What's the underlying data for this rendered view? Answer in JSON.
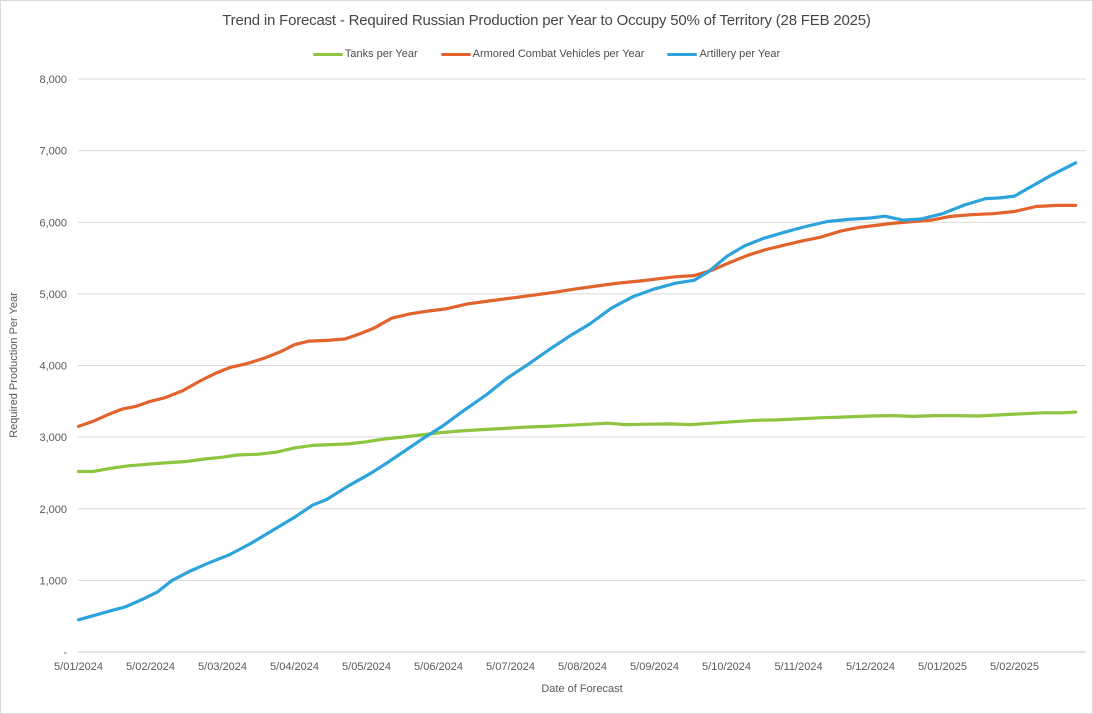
{
  "chart": {
    "title": "Trend in Forecast - Required Russian Production per Year to Occupy 50% of Territory (28 FEB 2025)",
    "x_axis_title": "Date of Forecast",
    "y_axis_title": "Required Production Per Year"
  },
  "colors": {
    "tanks": "#8CC540",
    "armored_combat_vehicles": "#E2632B",
    "artillery": "#2CA3DC",
    "gridline": "#D9D9D9",
    "axis_line": "#C6C6C6",
    "tick_text": "#595959",
    "title_text": "#474747"
  },
  "chart_data": {
    "type": "line",
    "title": "Trend in Forecast - Required Russian Production per Year to Occupy 50% of Territory (28 FEB 2025)",
    "xlabel": "Date of Forecast",
    "ylabel": "Required Production Per Year",
    "ylim": [
      0,
      8000
    ],
    "y_tick_step": 1000,
    "y_tick_labels": [
      "-",
      "1,000",
      "2,000",
      "3,000",
      "4,000",
      "5,000",
      "6,000",
      "7,000",
      "8,000"
    ],
    "x_tick_labels": [
      "5/01/2024",
      "5/02/2024",
      "5/03/2024",
      "5/04/2024",
      "5/05/2024",
      "5/06/2024",
      "5/07/2024",
      "5/08/2024",
      "5/09/2024",
      "5/10/2024",
      "5/11/2024",
      "5/12/2024",
      "5/01/2025",
      "5/02/2025"
    ],
    "x_units_note": "points given as [months after 5/01/2024 tick, required production per year]; series extend past last tick to ~28 FEB 2025",
    "x_range": [
      0,
      14.0
    ],
    "grid": "horizontal",
    "legend_position": "top",
    "series": [
      {
        "name": "Tanks per Year",
        "color": "#8CC540",
        "points": [
          [
            0,
            2520
          ],
          [
            0.2,
            2520
          ],
          [
            0.45,
            2565
          ],
          [
            0.7,
            2600
          ],
          [
            0.95,
            2620
          ],
          [
            1.2,
            2640
          ],
          [
            1.5,
            2660
          ],
          [
            1.75,
            2695
          ],
          [
            2.0,
            2720
          ],
          [
            2.2,
            2750
          ],
          [
            2.5,
            2762
          ],
          [
            2.75,
            2790
          ],
          [
            3.0,
            2850
          ],
          [
            3.25,
            2885
          ],
          [
            3.5,
            2895
          ],
          [
            3.75,
            2905
          ],
          [
            4.0,
            2935
          ],
          [
            4.25,
            2975
          ],
          [
            4.5,
            3000
          ],
          [
            4.75,
            3030
          ],
          [
            5.0,
            3060
          ],
          [
            5.3,
            3085
          ],
          [
            5.6,
            3105
          ],
          [
            5.9,
            3120
          ],
          [
            6.2,
            3140
          ],
          [
            6.5,
            3150
          ],
          [
            6.8,
            3165
          ],
          [
            7.1,
            3180
          ],
          [
            7.35,
            3195
          ],
          [
            7.6,
            3175
          ],
          [
            7.9,
            3180
          ],
          [
            8.2,
            3185
          ],
          [
            8.5,
            3175
          ],
          [
            8.8,
            3195
          ],
          [
            9.1,
            3215
          ],
          [
            9.4,
            3235
          ],
          [
            9.7,
            3240
          ],
          [
            10.0,
            3255
          ],
          [
            10.3,
            3270
          ],
          [
            10.6,
            3280
          ],
          [
            11.0,
            3295
          ],
          [
            11.3,
            3300
          ],
          [
            11.6,
            3290
          ],
          [
            11.9,
            3300
          ],
          [
            12.2,
            3300
          ],
          [
            12.5,
            3295
          ],
          [
            12.8,
            3310
          ],
          [
            13.1,
            3325
          ],
          [
            13.4,
            3340
          ],
          [
            13.65,
            3340
          ],
          [
            13.85,
            3350
          ]
        ]
      },
      {
        "name": "Armored Combat Vehicles per Year",
        "color": "#E2632B",
        "points": [
          [
            0,
            3150
          ],
          [
            0.2,
            3220
          ],
          [
            0.4,
            3310
          ],
          [
            0.6,
            3390
          ],
          [
            0.8,
            3430
          ],
          [
            1.0,
            3500
          ],
          [
            1.2,
            3550
          ],
          [
            1.45,
            3650
          ],
          [
            1.7,
            3790
          ],
          [
            1.9,
            3890
          ],
          [
            2.1,
            3970
          ],
          [
            2.35,
            4030
          ],
          [
            2.6,
            4110
          ],
          [
            2.8,
            4190
          ],
          [
            3.0,
            4290
          ],
          [
            3.2,
            4340
          ],
          [
            3.45,
            4350
          ],
          [
            3.7,
            4370
          ],
          [
            3.9,
            4440
          ],
          [
            4.1,
            4520
          ],
          [
            4.35,
            4660
          ],
          [
            4.6,
            4720
          ],
          [
            4.85,
            4760
          ],
          [
            5.1,
            4790
          ],
          [
            5.4,
            4860
          ],
          [
            5.7,
            4900
          ],
          [
            6.0,
            4940
          ],
          [
            6.3,
            4980
          ],
          [
            6.6,
            5020
          ],
          [
            6.9,
            5070
          ],
          [
            7.2,
            5110
          ],
          [
            7.5,
            5150
          ],
          [
            7.8,
            5180
          ],
          [
            8.05,
            5210
          ],
          [
            8.3,
            5240
          ],
          [
            8.55,
            5255
          ],
          [
            8.8,
            5330
          ],
          [
            9.05,
            5440
          ],
          [
            9.3,
            5540
          ],
          [
            9.55,
            5620
          ],
          [
            9.8,
            5680
          ],
          [
            10.05,
            5740
          ],
          [
            10.3,
            5790
          ],
          [
            10.6,
            5880
          ],
          [
            10.85,
            5930
          ],
          [
            11.1,
            5960
          ],
          [
            11.35,
            5990
          ],
          [
            11.6,
            6010
          ],
          [
            11.85,
            6030
          ],
          [
            12.1,
            6080
          ],
          [
            12.4,
            6105
          ],
          [
            12.7,
            6120
          ],
          [
            13.0,
            6150
          ],
          [
            13.3,
            6220
          ],
          [
            13.6,
            6235
          ],
          [
            13.85,
            6235
          ]
        ]
      },
      {
        "name": "Artillery per Year",
        "color": "#2CA3DC",
        "points": [
          [
            0,
            450
          ],
          [
            0.25,
            520
          ],
          [
            0.5,
            590
          ],
          [
            0.65,
            630
          ],
          [
            0.9,
            740
          ],
          [
            1.1,
            840
          ],
          [
            1.3,
            1000
          ],
          [
            1.55,
            1130
          ],
          [
            1.8,
            1240
          ],
          [
            2.1,
            1360
          ],
          [
            2.4,
            1520
          ],
          [
            2.7,
            1700
          ],
          [
            3.0,
            1880
          ],
          [
            3.25,
            2050
          ],
          [
            3.45,
            2130
          ],
          [
            3.75,
            2320
          ],
          [
            4.05,
            2490
          ],
          [
            4.3,
            2650
          ],
          [
            4.55,
            2820
          ],
          [
            4.8,
            2990
          ],
          [
            5.05,
            3150
          ],
          [
            5.35,
            3370
          ],
          [
            5.65,
            3580
          ],
          [
            5.95,
            3820
          ],
          [
            6.25,
            4020
          ],
          [
            6.55,
            4230
          ],
          [
            6.85,
            4430
          ],
          [
            7.1,
            4580
          ],
          [
            7.4,
            4800
          ],
          [
            7.7,
            4960
          ],
          [
            8.0,
            5070
          ],
          [
            8.3,
            5150
          ],
          [
            8.55,
            5190
          ],
          [
            8.75,
            5310
          ],
          [
            9.0,
            5520
          ],
          [
            9.25,
            5670
          ],
          [
            9.5,
            5770
          ],
          [
            9.8,
            5860
          ],
          [
            10.1,
            5940
          ],
          [
            10.4,
            6010
          ],
          [
            10.7,
            6040
          ],
          [
            11.0,
            6060
          ],
          [
            11.2,
            6085
          ],
          [
            11.45,
            6030
          ],
          [
            11.7,
            6045
          ],
          [
            12.0,
            6120
          ],
          [
            12.3,
            6240
          ],
          [
            12.6,
            6330
          ],
          [
            12.8,
            6340
          ],
          [
            13.0,
            6365
          ],
          [
            13.2,
            6480
          ],
          [
            13.5,
            6650
          ],
          [
            13.85,
            6830
          ]
        ]
      }
    ]
  }
}
